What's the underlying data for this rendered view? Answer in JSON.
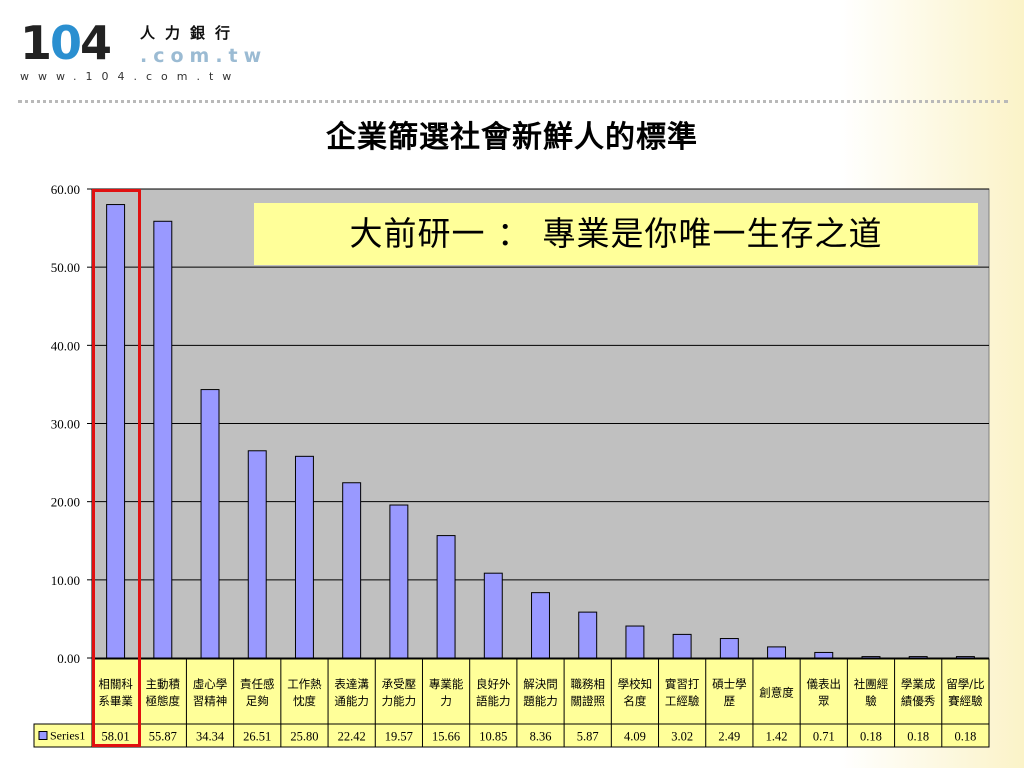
{
  "logo": {
    "number": "104",
    "chinese": "人力銀行",
    "domain": ".com.tw",
    "url": "www.104.com.tw"
  },
  "slide": {
    "title": "企業篩選社會新鮮人的標準",
    "callout": "大前研一 ： 專業是你唯一生存之道"
  },
  "colors": {
    "bar": "#9999ff",
    "plot_bg": "#c0c0c0",
    "table_bg": "#ffff99",
    "highlight": "#e01010"
  },
  "chart_data": {
    "type": "bar",
    "categories": [
      [
        "相關科",
        "系畢業"
      ],
      [
        "主動積",
        "極態度"
      ],
      [
        "虛心學",
        "習精神"
      ],
      [
        "責任感",
        "足夠"
      ],
      [
        "工作熱",
        "忱度"
      ],
      [
        "表達溝",
        "通能力"
      ],
      [
        "承受壓",
        "力能力"
      ],
      [
        "專業能",
        "力"
      ],
      [
        "良好外",
        "語能力"
      ],
      [
        "解決問",
        "題能力"
      ],
      [
        "職務相",
        "關證照"
      ],
      [
        "學校知",
        "名度"
      ],
      [
        "實習打",
        "工經驗"
      ],
      [
        "碩士學",
        "歷"
      ],
      [
        "創意度"
      ],
      [
        "儀表出",
        "眾"
      ],
      [
        "社團經",
        "驗"
      ],
      [
        "學業成",
        "績優秀"
      ],
      [
        "留學/比",
        "賽經驗"
      ]
    ],
    "series": [
      {
        "name": "Series1",
        "values": [
          58.01,
          55.87,
          34.34,
          26.51,
          25.8,
          22.42,
          19.57,
          15.66,
          10.85,
          8.36,
          5.87,
          4.09,
          3.02,
          2.49,
          1.42,
          0.71,
          0.18,
          0.18,
          0.18
        ],
        "labels": [
          "58.01",
          "55.87",
          "34.34",
          "26.51",
          "25.80",
          "22.42",
          "19.57",
          "15.66",
          "10.85",
          "8.36",
          "5.87",
          "4.09",
          "3.02",
          "2.49",
          "1.42",
          "0.71",
          "0.18",
          "0.18",
          "0.18"
        ]
      }
    ],
    "y_ticks": [
      "0.00",
      "10.00",
      "20.00",
      "30.00",
      "40.00",
      "50.00",
      "60.00"
    ],
    "ylim": [
      0,
      60
    ],
    "grid": true,
    "data_table": true,
    "highlighted_category_index": 0
  }
}
